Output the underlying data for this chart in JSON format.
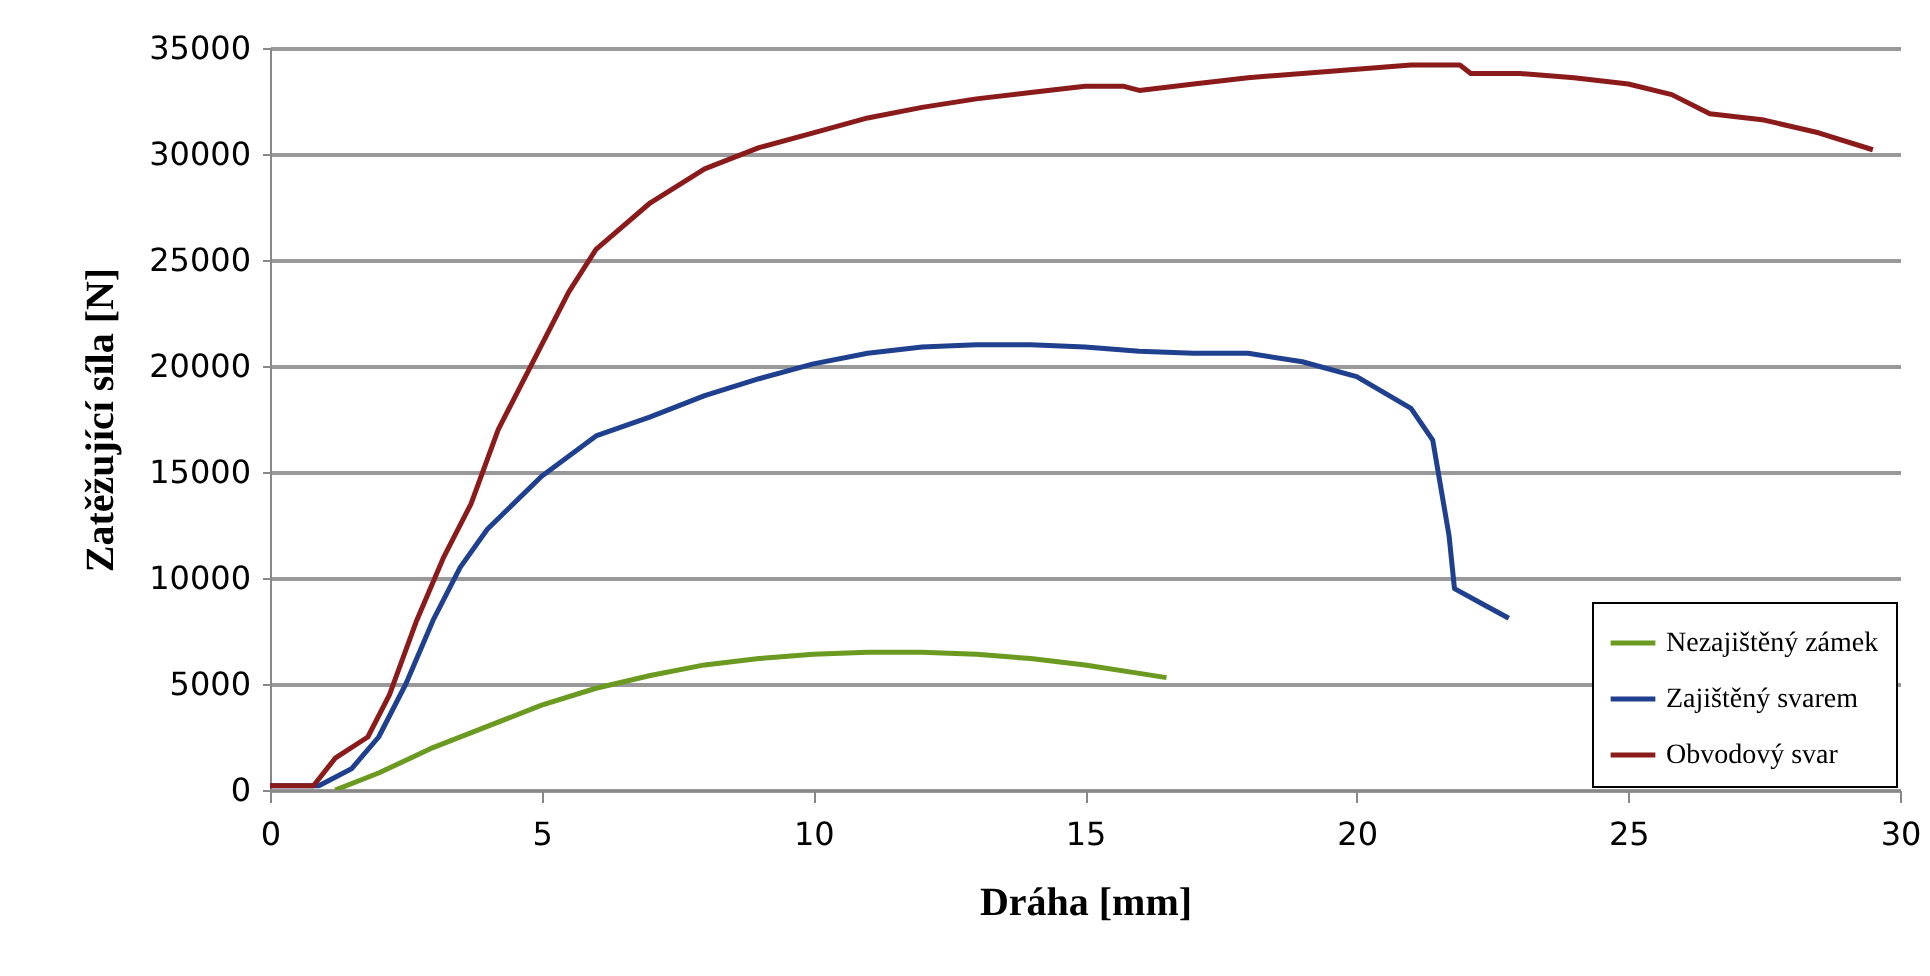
{
  "chart_data": {
    "type": "line",
    "xlabel": "Dráha [mm]",
    "ylabel": "Zatěžující síla [N]",
    "xlim": [
      0,
      30
    ],
    "xticks": [
      0,
      5,
      10,
      15,
      20,
      25,
      30
    ],
    "ylim": [
      0,
      35000
    ],
    "yticks": [
      0,
      5000,
      10000,
      15000,
      20000,
      25000,
      30000,
      35000
    ],
    "grid": "y",
    "legend": "bottom right",
    "line_style": "solid",
    "series": [
      {
        "name": "Nezajištěný zámek",
        "color": "#6a9a1f",
        "x": [
          1.2,
          2,
          3,
          4,
          5,
          6,
          7,
          8,
          9,
          10,
          11,
          12,
          13,
          14,
          15,
          16,
          16.5
        ],
        "values": [
          0,
          800,
          2000,
          3000,
          4000,
          4800,
          5400,
          5900,
          6200,
          6400,
          6500,
          6500,
          6400,
          6200,
          5900,
          5500,
          5300
        ]
      },
      {
        "name": "Zajištěný svarem",
        "color": "#1f3f8f",
        "x": [
          0,
          0.9,
          1.5,
          2,
          2.5,
          3,
          3.5,
          4,
          5,
          6,
          7,
          8,
          9,
          10,
          11,
          12,
          13,
          14,
          15,
          16,
          17,
          18,
          19,
          20,
          21,
          21.4,
          21.7,
          21.8,
          22.3,
          22.8
        ],
        "values": [
          200,
          200,
          1000,
          2500,
          5000,
          8000,
          10500,
          12300,
          14800,
          16700,
          17600,
          18600,
          19400,
          20100,
          20600,
          20900,
          21000,
          21000,
          20900,
          20700,
          20600,
          20600,
          20200,
          19500,
          18000,
          16500,
          12000,
          9500,
          8800,
          8100
        ]
      },
      {
        "name": "Obvodový svar",
        "color": "#8b1a1a",
        "x": [
          0,
          0.8,
          1.2,
          1.8,
          2.2,
          2.7,
          3.2,
          3.7,
          4.2,
          5,
          5.5,
          6,
          7,
          8,
          9,
          10,
          11,
          12,
          13,
          14,
          15,
          15.7,
          16,
          17,
          18,
          19,
          20,
          21,
          21.9,
          22.1,
          23,
          24,
          25,
          25.8,
          26.5,
          27.5,
          28.5,
          29.5
        ],
        "values": [
          200,
          200,
          1500,
          2500,
          4500,
          8000,
          11000,
          13500,
          17000,
          21000,
          23500,
          25500,
          27700,
          29300,
          30300,
          31000,
          31700,
          32200,
          32600,
          32900,
          33200,
          33200,
          33000,
          33300,
          33600,
          33800,
          34000,
          34200,
          34200,
          33800,
          33800,
          33600,
          33300,
          32800,
          31900,
          31600,
          31000,
          30200
        ]
      }
    ]
  }
}
